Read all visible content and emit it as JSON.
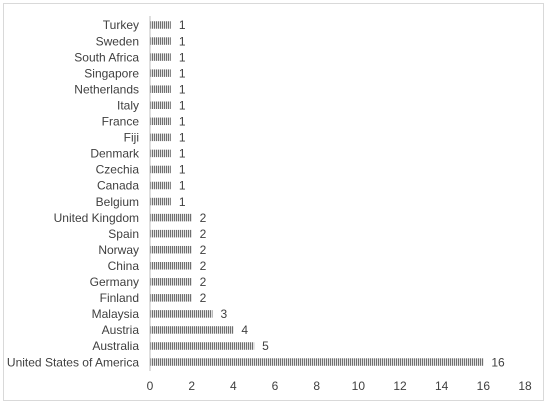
{
  "chart_data": {
    "type": "bar",
    "orientation": "horizontal",
    "title": "",
    "xlabel": "",
    "ylabel": "",
    "categories": [
      "Turkey",
      "Sweden",
      "South Africa",
      "Singapore",
      "Netherlands",
      "Italy",
      "France",
      "Fiji",
      "Denmark",
      "Czechia",
      "Canada",
      "Belgium",
      "United Kingdom",
      "Spain",
      "Norway",
      "China",
      "Germany",
      "Finland",
      "Malaysia",
      "Austria",
      "Australia",
      "United States of America"
    ],
    "values": [
      1,
      1,
      1,
      1,
      1,
      1,
      1,
      1,
      1,
      1,
      1,
      1,
      2,
      2,
      2,
      2,
      2,
      2,
      3,
      4,
      5,
      16
    ],
    "xlim": [
      0,
      18
    ],
    "xticks": [
      0,
      2,
      4,
      6,
      8,
      10,
      12,
      14,
      16,
      18
    ],
    "grid": false,
    "data_labels": true,
    "bar_color": "#7f7f7f",
    "bar_pattern": "vertical-hatch",
    "text_color": "#404040",
    "axis_color": "#bfbfbf"
  }
}
